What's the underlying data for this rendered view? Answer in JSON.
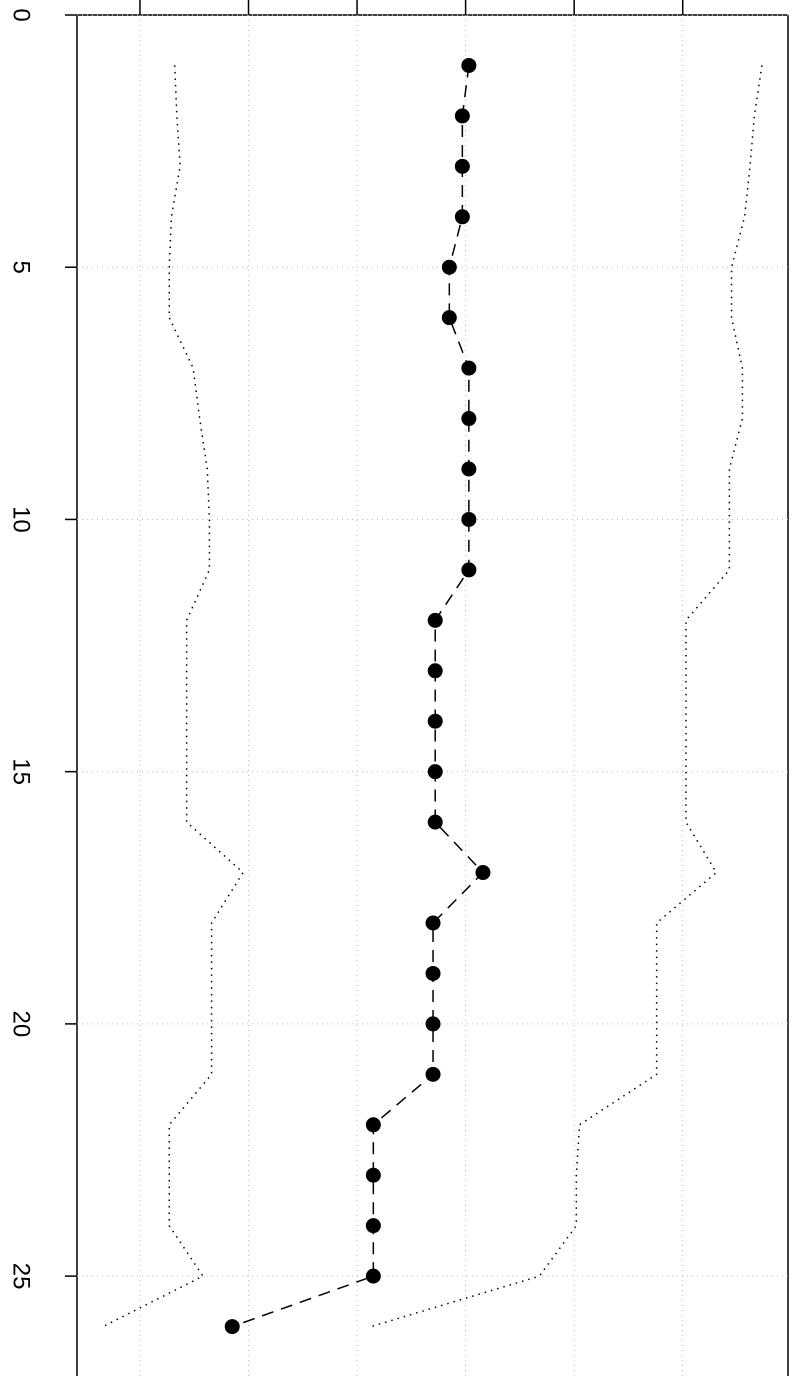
{
  "chart_data": {
    "type": "line",
    "orientation": "rotated",
    "x": [
      1,
      2,
      3,
      4,
      5,
      6,
      7,
      8,
      9,
      10,
      11,
      12,
      13,
      14,
      15,
      16,
      17,
      18,
      19,
      20,
      21,
      22,
      23,
      24,
      25,
      26
    ],
    "xlim": [
      0,
      26.98
    ],
    "xticks": [
      0,
      5,
      10,
      15,
      20,
      25
    ],
    "ylim": [
      -3.58,
      2.97
    ],
    "yticks": [
      -3,
      -2,
      -1,
      0,
      1,
      2
    ],
    "grid": true,
    "series": [
      {
        "color": "#000000",
        "style": "dashed",
        "markers": true,
        "values": [
          0.03,
          -0.03,
          -0.03,
          -0.03,
          -0.15,
          -0.15,
          0.03,
          0.03,
          0.03,
          0.03,
          0.03,
          -0.28,
          -0.28,
          -0.28,
          -0.28,
          -0.28,
          0.16,
          -0.3,
          -0.3,
          -0.3,
          -0.3,
          -0.85,
          -0.85,
          -0.85,
          -0.85,
          -2.15
        ]
      },
      {
        "color": "#000000",
        "style": "dotted",
        "markers": false,
        "values": [
          -2.68,
          -2.66,
          -2.63,
          -2.71,
          -2.73,
          -2.73,
          -2.51,
          -2.45,
          -2.38,
          -2.36,
          -2.36,
          -2.57,
          -2.57,
          -2.57,
          -2.57,
          -2.57,
          -2.05,
          -2.34,
          -2.34,
          -2.34,
          -2.34,
          -2.73,
          -2.73,
          -2.73,
          -2.42,
          -3.34
        ]
      },
      {
        "color": "#000000",
        "style": "dotted",
        "markers": false,
        "values": [
          2.73,
          2.66,
          2.62,
          2.57,
          2.45,
          2.45,
          2.55,
          2.55,
          2.43,
          2.43,
          2.43,
          2.03,
          2.03,
          2.03,
          2.03,
          2.03,
          2.31,
          1.76,
          1.76,
          1.76,
          1.76,
          1.05,
          1.02,
          1.02,
          0.68,
          -0.87
        ]
      }
    ]
  }
}
